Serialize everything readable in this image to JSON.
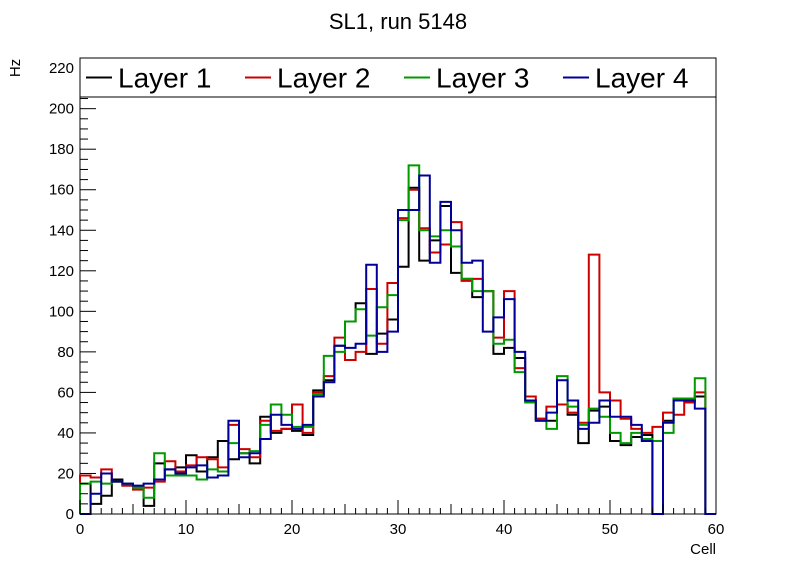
{
  "chart_data": {
    "type": "line",
    "title": "SL1, run 5148",
    "xlabel": "Cell",
    "ylabel": "Hz",
    "xlim": [
      0,
      60
    ],
    "ylim": [
      0,
      225
    ],
    "x_ticks": [
      0,
      10,
      20,
      30,
      40,
      50,
      60
    ],
    "y_ticks": [
      0,
      20,
      40,
      60,
      80,
      100,
      120,
      140,
      160,
      180,
      200,
      220
    ],
    "x": [
      0,
      1,
      2,
      3,
      4,
      5,
      6,
      7,
      8,
      9,
      10,
      11,
      12,
      13,
      14,
      15,
      16,
      17,
      18,
      19,
      20,
      21,
      22,
      23,
      24,
      25,
      26,
      27,
      28,
      29,
      30,
      31,
      32,
      33,
      34,
      35,
      36,
      37,
      38,
      39,
      40,
      41,
      42,
      43,
      44,
      45,
      46,
      47,
      48,
      49,
      50,
      51,
      52,
      53,
      54,
      55,
      56,
      57,
      58,
      59
    ],
    "grid": false,
    "legend_position": "top",
    "series": [
      {
        "name": "Layer 1",
        "color": "#000000",
        "values": [
          15,
          5,
          9,
          17,
          14,
          13,
          4,
          25,
          22,
          23,
          29,
          21,
          28,
          36,
          27,
          30,
          25,
          48,
          40,
          42,
          41,
          39,
          61,
          66,
          83,
          95,
          104,
          79,
          89,
          96,
          122,
          161,
          125,
          135,
          152,
          119,
          116,
          107,
          110,
          79,
          82,
          77,
          56,
          47,
          46,
          54,
          49,
          35,
          51,
          53,
          36,
          34,
          38,
          39,
          0,
          46,
          57,
          56,
          58,
          0
        ]
      },
      {
        "name": "Layer 2",
        "color": "#cc0000",
        "values": [
          19,
          18,
          22,
          16,
          14,
          12,
          13,
          16,
          26,
          21,
          24,
          28,
          27,
          23,
          44,
          32,
          28,
          46,
          41,
          42,
          54,
          40,
          60,
          68,
          87,
          76,
          80,
          111,
          84,
          114,
          146,
          160,
          141,
          129,
          133,
          144,
          115,
          116,
          110,
          87,
          110,
          72,
          58,
          47,
          53,
          54,
          50,
          45,
          128,
          60,
          56,
          47,
          42,
          40,
          43,
          50,
          49,
          55,
          60,
          0
        ]
      },
      {
        "name": "Layer 3",
        "color": "#009900",
        "values": [
          15,
          16,
          15,
          16,
          15,
          13,
          8,
          30,
          19,
          19,
          19,
          17,
          22,
          21,
          35,
          30,
          31,
          44,
          54,
          49,
          43,
          43,
          59,
          78,
          80,
          95,
          101,
          88,
          102,
          108,
          145,
          172,
          140,
          137,
          140,
          132,
          116,
          110,
          110,
          84,
          86,
          70,
          55,
          46,
          42,
          68,
          53,
          44,
          52,
          48,
          40,
          35,
          40,
          37,
          36,
          40,
          57,
          57,
          67,
          0
        ]
      },
      {
        "name": "Layer 4",
        "color": "#000099",
        "values": [
          0,
          10,
          20,
          16,
          15,
          14,
          15,
          17,
          22,
          20,
          23,
          24,
          18,
          19,
          46,
          28,
          30,
          37,
          49,
          44,
          42,
          44,
          58,
          65,
          83,
          82,
          84,
          123,
          80,
          90,
          150,
          150,
          167,
          124,
          154,
          140,
          124,
          125,
          90,
          97,
          106,
          80,
          56,
          46,
          50,
          66,
          56,
          42,
          45,
          56,
          48,
          48,
          44,
          36,
          0,
          45,
          56,
          56,
          52,
          0
        ]
      }
    ]
  }
}
